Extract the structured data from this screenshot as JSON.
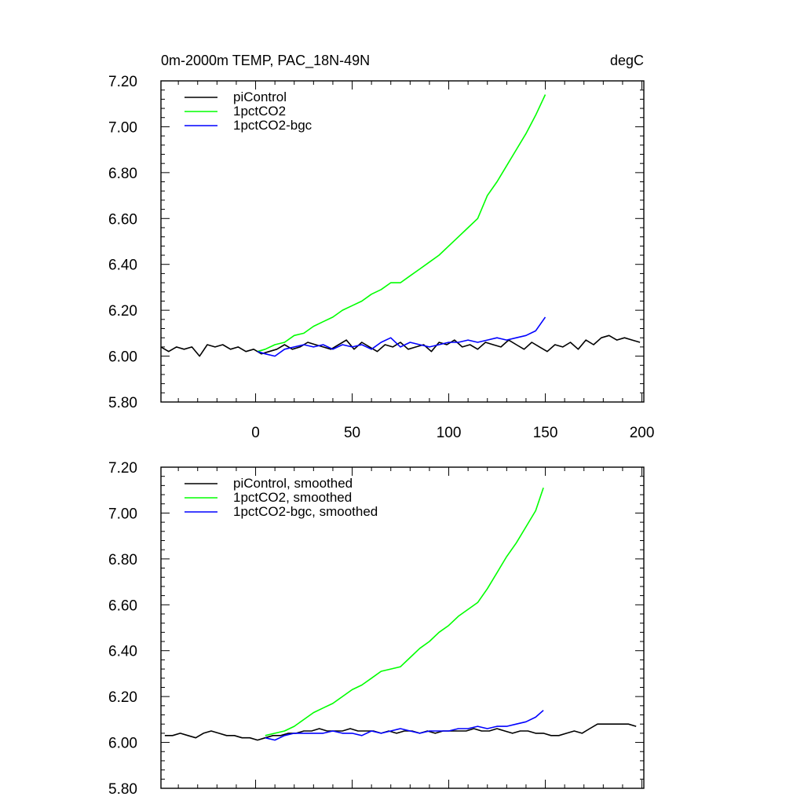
{
  "chart_data": [
    {
      "type": "line",
      "title": "0m-2000m TEMP, PAC_18N-49N",
      "units": "degC",
      "xlim": [
        -49,
        201
      ],
      "ylim": [
        5.8,
        7.2
      ],
      "yticks": [
        "5.80",
        "6.00",
        "6.20",
        "6.40",
        "6.60",
        "6.80",
        "7.00",
        "7.20"
      ],
      "xticks": [
        "0",
        "50",
        "100",
        "150",
        "200"
      ],
      "legend_position": "top-left",
      "grid": false,
      "series": [
        {
          "name": "piControl",
          "color": "#000000",
          "x": [
            -49,
            -45,
            -41,
            -37,
            -33,
            -29,
            -25,
            -21,
            -17,
            -13,
            -9,
            -5,
            -1,
            3,
            7,
            11,
            15,
            19,
            23,
            27,
            31,
            35,
            39,
            43,
            47,
            51,
            55,
            59,
            63,
            67,
            71,
            75,
            79,
            83,
            87,
            91,
            95,
            99,
            103,
            107,
            111,
            115,
            119,
            123,
            127,
            131,
            135,
            139,
            143,
            147,
            151,
            155,
            159,
            163,
            167,
            171,
            175,
            179,
            183,
            187,
            191,
            195,
            199
          ],
          "y": [
            6.04,
            6.02,
            6.04,
            6.03,
            6.04,
            6.0,
            6.05,
            6.04,
            6.05,
            6.03,
            6.04,
            6.02,
            6.03,
            6.01,
            6.02,
            6.03,
            6.05,
            6.03,
            6.04,
            6.06,
            6.05,
            6.04,
            6.03,
            6.05,
            6.07,
            6.03,
            6.06,
            6.04,
            6.02,
            6.05,
            6.04,
            6.06,
            6.03,
            6.04,
            6.05,
            6.02,
            6.06,
            6.05,
            6.07,
            6.04,
            6.05,
            6.03,
            6.06,
            6.05,
            6.04,
            6.07,
            6.05,
            6.03,
            6.06,
            6.04,
            6.02,
            6.05,
            6.04,
            6.06,
            6.03,
            6.07,
            6.05,
            6.08,
            6.09,
            6.07,
            6.08,
            6.07,
            6.06
          ]
        },
        {
          "name": "1pctCO2",
          "color": "#00ff00",
          "x": [
            1,
            5,
            10,
            15,
            20,
            25,
            30,
            35,
            40,
            45,
            50,
            55,
            60,
            65,
            70,
            75,
            80,
            85,
            90,
            95,
            100,
            105,
            110,
            115,
            120,
            125,
            130,
            135,
            140,
            145,
            150
          ],
          "y": [
            6.02,
            6.03,
            6.05,
            6.06,
            6.09,
            6.1,
            6.13,
            6.15,
            6.17,
            6.2,
            6.22,
            6.24,
            6.27,
            6.29,
            6.32,
            6.32,
            6.35,
            6.38,
            6.41,
            6.44,
            6.48,
            6.52,
            6.56,
            6.6,
            6.7,
            6.76,
            6.83,
            6.9,
            6.97,
            7.05,
            7.14
          ]
        },
        {
          "name": "1pctCO2-bgc",
          "color": "#0000ff",
          "x": [
            1,
            5,
            10,
            15,
            20,
            25,
            30,
            35,
            40,
            45,
            50,
            55,
            60,
            65,
            70,
            75,
            80,
            85,
            90,
            95,
            100,
            105,
            110,
            115,
            120,
            125,
            130,
            135,
            140,
            145,
            150
          ],
          "y": [
            6.02,
            6.01,
            6.0,
            6.03,
            6.04,
            6.05,
            6.04,
            6.05,
            6.03,
            6.05,
            6.04,
            6.05,
            6.03,
            6.06,
            6.08,
            6.04,
            6.06,
            6.05,
            6.04,
            6.05,
            6.06,
            6.06,
            6.07,
            6.06,
            6.07,
            6.08,
            6.07,
            6.08,
            6.09,
            6.11,
            6.17
          ]
        }
      ]
    },
    {
      "type": "line",
      "xlim": [
        -49,
        201
      ],
      "ylim": [
        5.8,
        7.2
      ],
      "yticks": [
        "5.80",
        "6.00",
        "6.20",
        "6.40",
        "6.60",
        "6.80",
        "7.00",
        "7.20"
      ],
      "legend_position": "top-left",
      "grid": false,
      "series": [
        {
          "name": "piControl, smoothed",
          "color": "#000000",
          "x": [
            -47,
            -43,
            -39,
            -35,
            -31,
            -27,
            -23,
            -19,
            -15,
            -11,
            -7,
            -3,
            1,
            5,
            9,
            13,
            17,
            21,
            25,
            29,
            33,
            37,
            41,
            45,
            49,
            53,
            57,
            61,
            65,
            69,
            73,
            77,
            81,
            85,
            89,
            93,
            97,
            101,
            105,
            109,
            113,
            117,
            121,
            125,
            129,
            133,
            137,
            141,
            145,
            149,
            153,
            157,
            161,
            165,
            169,
            173,
            177,
            181,
            185,
            189,
            193,
            197
          ],
          "y": [
            6.03,
            6.03,
            6.04,
            6.03,
            6.02,
            6.04,
            6.05,
            6.04,
            6.03,
            6.03,
            6.02,
            6.02,
            6.01,
            6.02,
            6.03,
            6.03,
            6.04,
            6.04,
            6.05,
            6.05,
            6.06,
            6.05,
            6.05,
            6.05,
            6.06,
            6.05,
            6.05,
            6.05,
            6.04,
            6.05,
            6.04,
            6.05,
            6.05,
            6.04,
            6.05,
            6.04,
            6.05,
            6.05,
            6.05,
            6.05,
            6.06,
            6.05,
            6.05,
            6.06,
            6.05,
            6.04,
            6.05,
            6.05,
            6.04,
            6.04,
            6.03,
            6.03,
            6.04,
            6.05,
            6.04,
            6.06,
            6.08,
            6.08,
            6.08,
            6.08,
            6.08,
            6.07
          ]
        },
        {
          "name": "1pctCO2, smoothed",
          "color": "#00ff00",
          "x": [
            5,
            10,
            15,
            20,
            25,
            30,
            35,
            40,
            45,
            50,
            55,
            60,
            65,
            70,
            75,
            80,
            85,
            90,
            95,
            100,
            105,
            110,
            115,
            120,
            125,
            130,
            135,
            140,
            145,
            149
          ],
          "y": [
            6.03,
            6.04,
            6.05,
            6.07,
            6.1,
            6.13,
            6.15,
            6.17,
            6.2,
            6.23,
            6.25,
            6.28,
            6.31,
            6.32,
            6.33,
            6.37,
            6.41,
            6.44,
            6.48,
            6.51,
            6.55,
            6.58,
            6.61,
            6.67,
            6.74,
            6.81,
            6.87,
            6.94,
            7.01,
            7.11
          ]
        },
        {
          "name": "1pctCO2-bgc, smoothed",
          "color": "#0000ff",
          "x": [
            5,
            10,
            15,
            20,
            25,
            30,
            35,
            40,
            45,
            50,
            55,
            60,
            65,
            70,
            75,
            80,
            85,
            90,
            95,
            100,
            105,
            110,
            115,
            120,
            125,
            130,
            135,
            140,
            145,
            149
          ],
          "y": [
            6.02,
            6.01,
            6.03,
            6.04,
            6.04,
            6.04,
            6.04,
            6.05,
            6.04,
            6.04,
            6.03,
            6.05,
            6.04,
            6.05,
            6.06,
            6.05,
            6.04,
            6.05,
            6.05,
            6.05,
            6.06,
            6.06,
            6.07,
            6.06,
            6.07,
            6.07,
            6.08,
            6.09,
            6.11,
            6.14
          ]
        }
      ]
    }
  ]
}
